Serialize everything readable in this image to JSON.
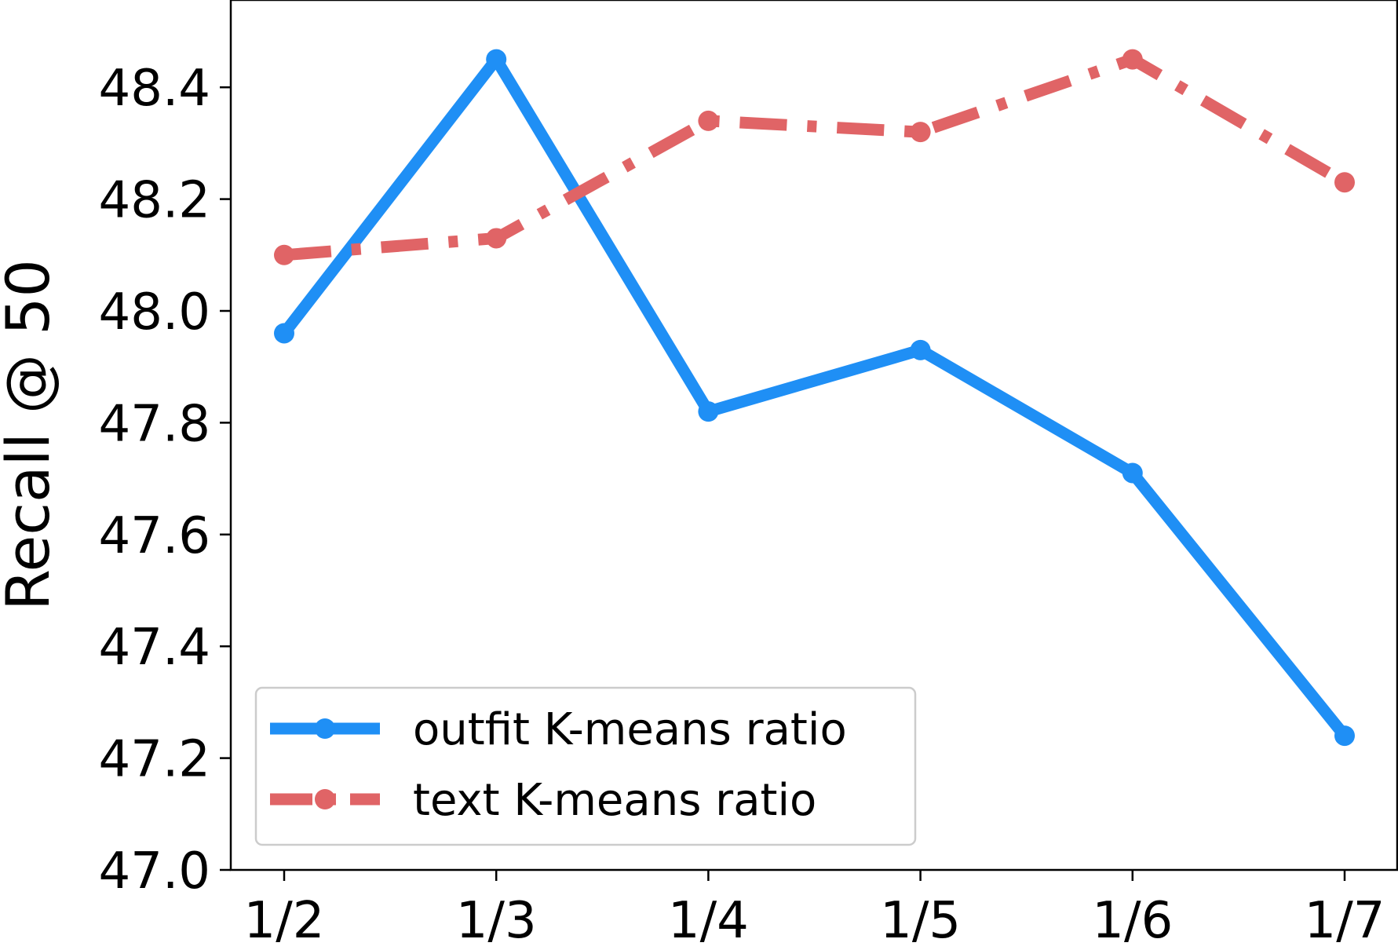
{
  "chart_data": {
    "type": "line",
    "title": "",
    "xlabel": "",
    "ylabel": "Recall @ 50",
    "categories": [
      "1/2",
      "1/3",
      "1/4",
      "1/5",
      "1/6",
      "1/7"
    ],
    "ylim": [
      47.0,
      48.5
    ],
    "yticks": [
      "47.0",
      "47.2",
      "47.4",
      "47.6",
      "47.8",
      "48.0",
      "48.2",
      "48.4"
    ],
    "grid": false,
    "legend_position": "lower-left",
    "series": [
      {
        "name": "outfit K-means ratio",
        "values": [
          47.96,
          48.45,
          47.82,
          47.93,
          47.71,
          47.24
        ],
        "color": "#1f8ff5",
        "style": "solid"
      },
      {
        "name": "text K-means ratio",
        "values": [
          48.1,
          48.13,
          48.34,
          48.32,
          48.45,
          48.23
        ],
        "color": "#e06466",
        "style": "dashdot"
      }
    ]
  }
}
